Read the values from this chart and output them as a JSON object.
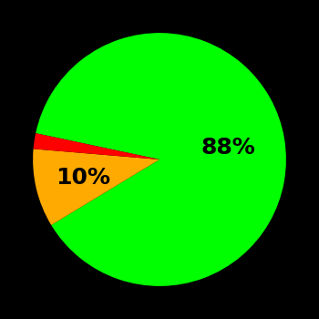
{
  "slices": [
    88,
    10,
    2
  ],
  "colors": [
    "#00ff00",
    "#ffaa00",
    "#ff0000"
  ],
  "background_color": "#000000",
  "startangle": 168,
  "label_fontsize": 18,
  "label_fontweight": "bold",
  "label_color": "#000000",
  "label_configs": [
    {
      "idx": 0,
      "text": "88%",
      "r": 0.55
    },
    {
      "idx": 1,
      "text": "10%",
      "r": 0.62
    }
  ]
}
